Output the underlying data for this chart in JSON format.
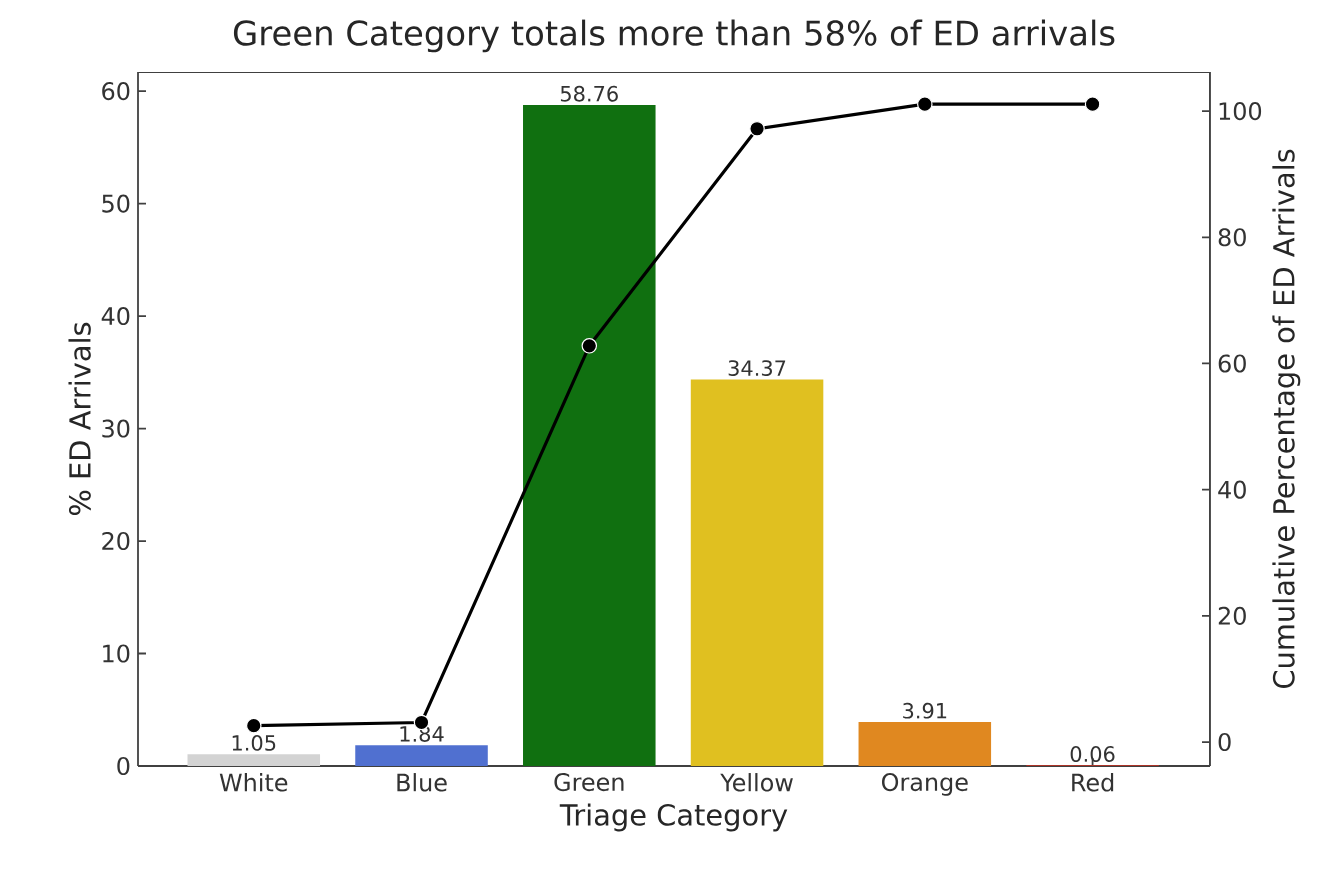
{
  "chart_data": {
    "type": "bar",
    "title": "Green Category totals more than 58% of ED arrivals",
    "xlabel": "Triage Category",
    "ylabel": "% ED Arrivals",
    "y2label": "Cumulative Percentage of ED Arrivals",
    "categories": [
      "White",
      "Blue",
      "Green",
      "Yellow",
      "Orange",
      "Red"
    ],
    "series": [
      {
        "colors": [
          "#d3d3d3",
          "#5070d0",
          "#107010",
          "#e0c020",
          "#e08820",
          "#d03020"
        ],
        "values": [
          1.05,
          1.84,
          58.76,
          34.37,
          3.91,
          0.06
        ],
        "value_labels": [
          "1.05",
          "1.84",
          "58.76",
          "34.37",
          "3.91",
          "0.06"
        ]
      },
      {
        "type": "line",
        "axis": "y2",
        "color": "#000000",
        "marker": "circle",
        "values": [
          2.6,
          3.1,
          62.8,
          97.2,
          101.1,
          101.1
        ]
      }
    ],
    "ylim": [
      0,
      61.7
    ],
    "yticks": [
      0,
      10,
      20,
      30,
      40,
      50,
      60
    ],
    "y2lim": [
      -3.8,
      106.2
    ],
    "y2ticks": [
      0,
      20,
      40,
      60,
      80,
      100
    ],
    "grid": false
  }
}
